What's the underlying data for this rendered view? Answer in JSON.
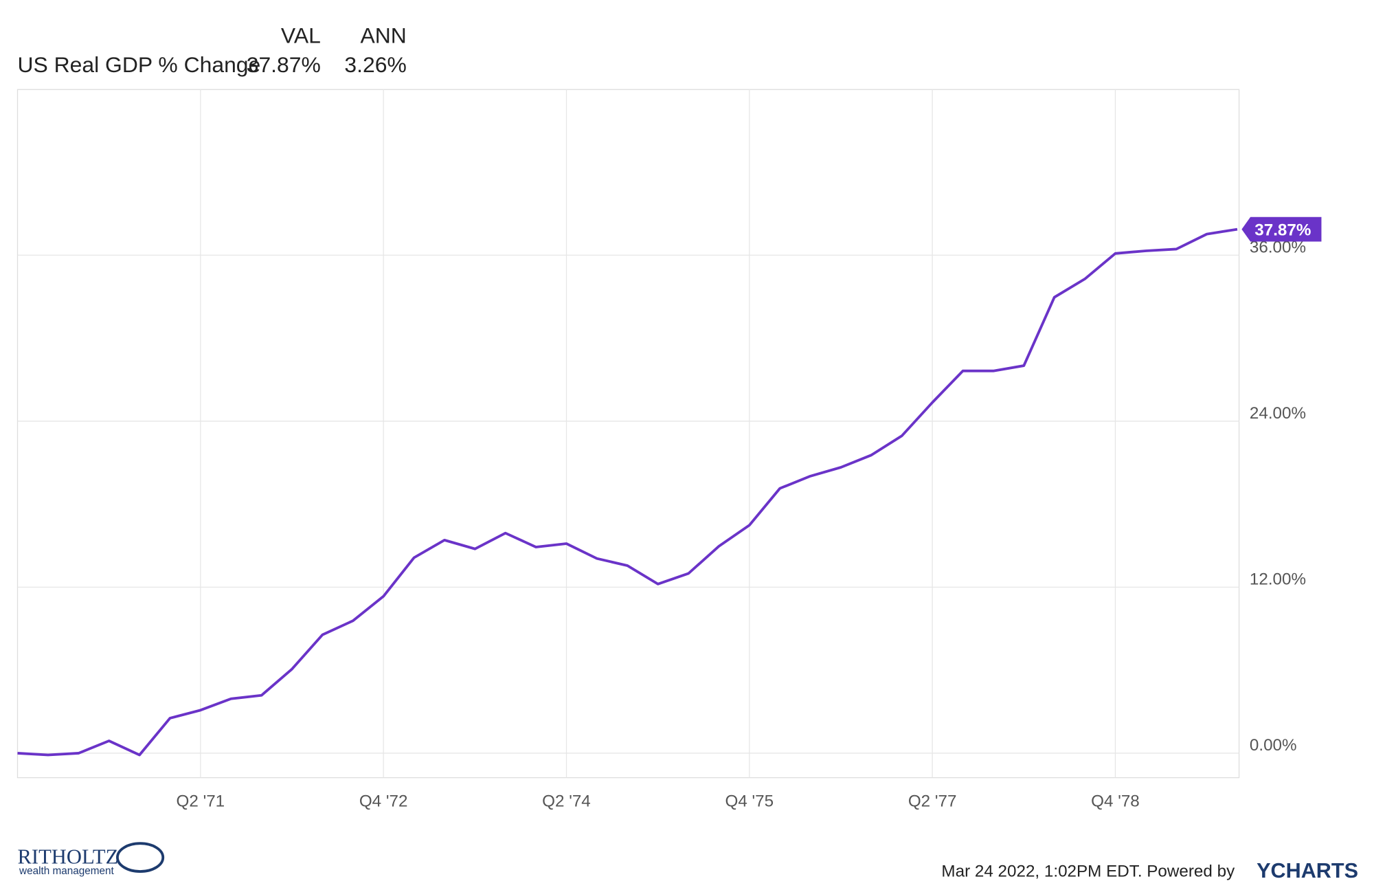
{
  "chart_data": {
    "type": "line",
    "header": {
      "columns": [
        "VAL",
        "ANN"
      ],
      "series_label": "US Real GDP % Change",
      "val": "37.87%",
      "ann": "3.26%"
    },
    "categories": [
      null,
      null,
      null,
      null,
      null,
      null,
      "Q2 '71",
      null,
      null,
      null,
      null,
      null,
      "Q4 '72",
      null,
      null,
      null,
      null,
      null,
      "Q2 '74",
      null,
      null,
      null,
      null,
      null,
      "Q4 '75",
      null,
      null,
      null,
      null,
      null,
      "Q2 '77",
      null,
      null,
      null,
      null,
      null,
      "Q4 '78",
      null,
      null,
      null,
      null
    ],
    "series": [
      {
        "name": "US Real GDP % Change",
        "color": "#6a33c8",
        "values": [
          0,
          -0.13,
          0,
          0.89,
          -0.13,
          2.53,
          3.11,
          3.93,
          4.18,
          6.08,
          8.56,
          9.57,
          11.34,
          14.13,
          15.4,
          14.77,
          15.91,
          14.9,
          15.15,
          14.07,
          13.56,
          12.23,
          12.99,
          14.96,
          16.48,
          19.14,
          20.03,
          20.66,
          21.55,
          22.94,
          25.35,
          27.63,
          27.63,
          28.01,
          32.95,
          34.28,
          36.12,
          36.31,
          36.44,
          37.52,
          37.87
        ],
        "last_value_label": "37.87%"
      }
    ],
    "ylim": [
      -1.77,
      47.97
    ],
    "yticks": [
      {
        "value": 0,
        "label": "0.00%"
      },
      {
        "value": 12,
        "label": "12.00%"
      },
      {
        "value": 24,
        "label": "24.00%"
      },
      {
        "value": 36,
        "label": "36.00%"
      }
    ],
    "grid": true,
    "footer": {
      "logo": "RITHOLTZ",
      "logo_sub": "wealth management",
      "timestamp": "Mar 24 2022, 1:02PM EDT. Powered by",
      "brand": "YCHARTS"
    }
  }
}
